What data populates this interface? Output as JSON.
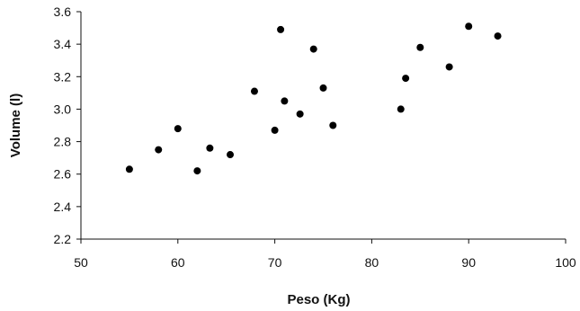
{
  "chart_data": {
    "type": "scatter",
    "title": "",
    "xlabel": "Peso (Kg)",
    "ylabel": "Volume (l)",
    "xlim": [
      50,
      100
    ],
    "ylim": [
      2.2,
      3.6
    ],
    "xticks": [
      50,
      60,
      70,
      80,
      90,
      100
    ],
    "yticks": [
      2.2,
      2.4,
      2.6,
      2.8,
      3.0,
      3.2,
      3.4,
      3.6
    ],
    "xtick_labels": [
      "50",
      "60",
      "70",
      "80",
      "90",
      "100"
    ],
    "ytick_labels": [
      "2.2",
      "2.4",
      "2.6",
      "2.8",
      "3.0",
      "3.2",
      "3.4",
      "3.6"
    ],
    "grid": false,
    "legend": "none",
    "marker_color": "#000000",
    "points": [
      {
        "x": 55.0,
        "y": 2.63
      },
      {
        "x": 58.0,
        "y": 2.75
      },
      {
        "x": 60.0,
        "y": 2.88
      },
      {
        "x": 62.0,
        "y": 2.62
      },
      {
        "x": 63.3,
        "y": 2.76
      },
      {
        "x": 65.4,
        "y": 2.72
      },
      {
        "x": 67.9,
        "y": 3.11
      },
      {
        "x": 70.0,
        "y": 2.87
      },
      {
        "x": 70.6,
        "y": 3.49
      },
      {
        "x": 71.0,
        "y": 3.05
      },
      {
        "x": 72.6,
        "y": 2.97
      },
      {
        "x": 74.0,
        "y": 3.37
      },
      {
        "x": 75.0,
        "y": 3.13
      },
      {
        "x": 76.0,
        "y": 2.9
      },
      {
        "x": 83.0,
        "y": 3.0
      },
      {
        "x": 83.5,
        "y": 3.19
      },
      {
        "x": 85.0,
        "y": 3.38
      },
      {
        "x": 88.0,
        "y": 3.26
      },
      {
        "x": 90.0,
        "y": 3.51
      },
      {
        "x": 93.0,
        "y": 3.45
      }
    ]
  }
}
